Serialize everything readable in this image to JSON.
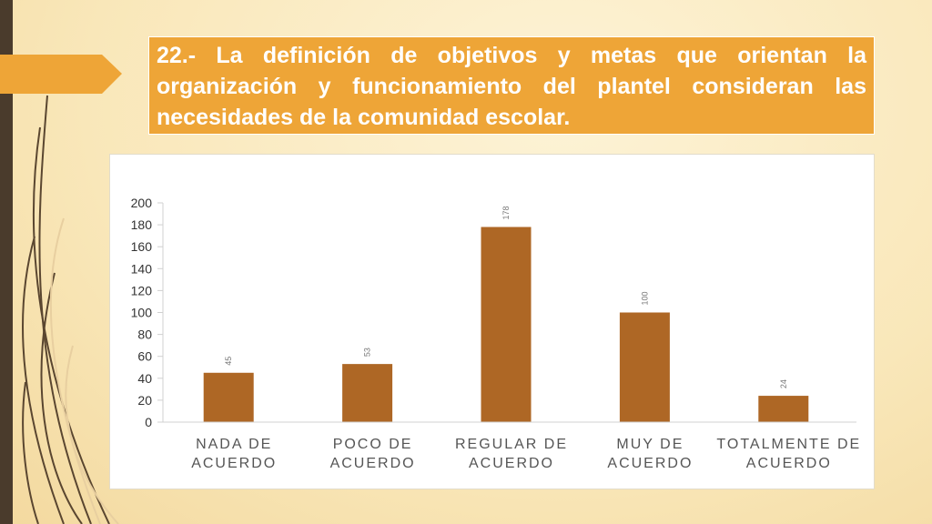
{
  "slide": {
    "title": "22.- La definición de objetivos y metas que orientan la organización y funcionamiento del plantel consideran las necesidades de la comunidad escolar."
  },
  "colors": {
    "bar": "#ae6725",
    "title_bg": "#eea537",
    "left_strip": "#4a3b2c"
  },
  "chart_data": {
    "type": "bar",
    "categories": [
      [
        "NADA DE",
        "ACUERDO"
      ],
      [
        "POCO DE",
        "ACUERDO"
      ],
      [
        "REGULAR DE",
        "ACUERDO"
      ],
      [
        "MUY DE",
        "ACUERDO"
      ],
      [
        "TOTALMENTE DE",
        "ACUERDO"
      ]
    ],
    "values": [
      45,
      53,
      178,
      100,
      24
    ],
    "ylim": [
      0,
      200
    ],
    "yticks": [
      0,
      20,
      40,
      60,
      80,
      100,
      120,
      140,
      160,
      180,
      200
    ],
    "grid": false,
    "legend": "none"
  }
}
